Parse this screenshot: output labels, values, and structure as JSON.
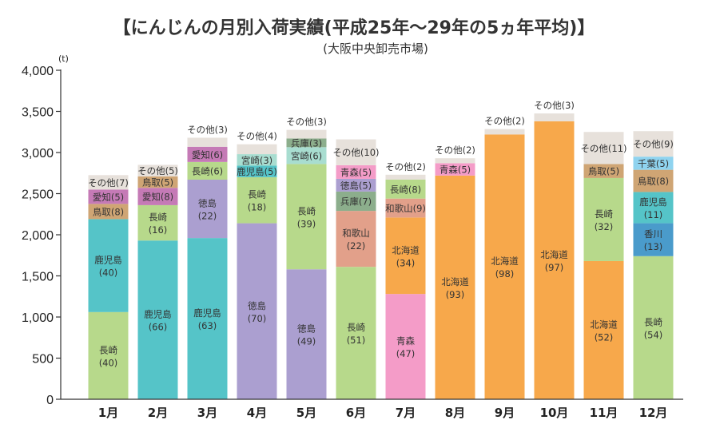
{
  "chart_data": {
    "type": "bar",
    "stacked": true,
    "title": "【にんじんの月別入荷実績(平成25年〜29年の5ヵ年平均)】",
    "subtitle": "(大阪中央卸売市場)",
    "unit": "(t)",
    "ylim": [
      0,
      4000
    ],
    "yticks": [
      "0",
      "500",
      "1,000",
      "1,500",
      "2,000",
      "2,500",
      "3,000",
      "3,500",
      "4,000"
    ],
    "ytick_values": [
      0,
      500,
      1000,
      1500,
      2000,
      2500,
      3000,
      3500,
      4000
    ],
    "grid": false,
    "categories": [
      "1月",
      "2月",
      "3月",
      "4月",
      "5月",
      "6月",
      "7月",
      "8月",
      "9月",
      "10月",
      "11月",
      "12月"
    ],
    "colors": {
      "長崎": "#b7d98b",
      "鹿児島": "#55c4c8",
      "徳島": "#ab9fd0",
      "北海道": "#f7a84b",
      "和歌山": "#e2a08a",
      "青森": "#f49cc8",
      "香川": "#4a9bcb",
      "千葉": "#8fd3ef",
      "鳥取": "#cfa574",
      "愛知": "#c57ab6",
      "宮崎": "#a8ddd0",
      "兵庫": "#8cae8c",
      "その他": "#e7e1db"
    },
    "bars": [
      {
        "month": "1月",
        "segments": [
          {
            "name": "長崎",
            "label": "長崎",
            "pct": "(40)",
            "value": 1060
          },
          {
            "name": "鹿児島",
            "label": "鹿児島",
            "pct": "(40)",
            "value": 1130
          },
          {
            "name": "鳥取",
            "label": "鳥取(8)",
            "value": 185
          },
          {
            "name": "愛知",
            "label": "愛知(5)",
            "value": 175
          },
          {
            "name": "その他",
            "label": "その他(7)",
            "value": 175
          }
        ]
      },
      {
        "month": "2月",
        "segments": [
          {
            "name": "鹿児島",
            "label": "鹿児島",
            "pct": "(66)",
            "value": 1930
          },
          {
            "name": "長崎",
            "label": "長崎",
            "pct": "(16)",
            "value": 430
          },
          {
            "name": "愛知",
            "label": "愛知(8)",
            "value": 210
          },
          {
            "name": "鳥取",
            "label": "鳥取(5)",
            "value": 140
          },
          {
            "name": "その他",
            "label": "その他(5)",
            "value": 140
          }
        ]
      },
      {
        "month": "3月",
        "segments": [
          {
            "name": "鹿児島",
            "label": "鹿児島",
            "pct": "(63)",
            "value": 1960
          },
          {
            "name": "徳島",
            "label": "徳島",
            "pct": "(22)",
            "value": 710
          },
          {
            "name": "長崎",
            "label": "長崎(6)",
            "value": 215
          },
          {
            "name": "愛知",
            "label": "愛知(6)",
            "value": 185
          },
          {
            "name": "その他",
            "label": "その他(3)",
            "value": 110
          }
        ]
      },
      {
        "month": "4月",
        "segments": [
          {
            "name": "徳島",
            "label": "徳島",
            "pct": "(70)",
            "value": 2140
          },
          {
            "name": "長崎",
            "label": "長崎",
            "pct": "(18)",
            "value": 560
          },
          {
            "name": "鹿児島",
            "label": "鹿児島(5)",
            "value": 140
          },
          {
            "name": "宮崎",
            "label": "宮崎(3)",
            "value": 140
          },
          {
            "name": "その他",
            "label": "その他(4)",
            "value": 120
          }
        ]
      },
      {
        "month": "5月",
        "segments": [
          {
            "name": "徳島",
            "label": "徳島",
            "pct": "(49)",
            "value": 1580
          },
          {
            "name": "長崎",
            "label": "長崎",
            "pct": "(39)",
            "value": 1280
          },
          {
            "name": "宮崎",
            "label": "宮崎(6)",
            "value": 205
          },
          {
            "name": "兵庫",
            "label": "兵庫(3)",
            "value": 105
          },
          {
            "name": "その他",
            "label": "その他(3)",
            "value": 105
          }
        ]
      },
      {
        "month": "6月",
        "segments": [
          {
            "name": "長崎",
            "label": "長崎",
            "pct": "(51)",
            "value": 1610
          },
          {
            "name": "和歌山",
            "label": "和歌山",
            "pct": "(22)",
            "value": 680
          },
          {
            "name": "兵庫",
            "label": "兵庫(7)",
            "value": 235
          },
          {
            "name": "徳島",
            "label": "徳島(5)",
            "value": 155
          },
          {
            "name": "青森",
            "label": "青森(5)",
            "value": 165
          },
          {
            "name": "その他",
            "label": "その他(10)",
            "value": 315
          }
        ]
      },
      {
        "month": "7月",
        "segments": [
          {
            "name": "青森",
            "label": "青森",
            "pct": "(47)",
            "value": 1280
          },
          {
            "name": "北海道",
            "label": "北海道",
            "pct": "(34)",
            "value": 930
          },
          {
            "name": "和歌山",
            "label": "和歌山(9)",
            "value": 230
          },
          {
            "name": "長崎",
            "label": "長崎(8)",
            "value": 230
          },
          {
            "name": "その他",
            "label": "その他(2)",
            "value": 60
          }
        ]
      },
      {
        "month": "8月",
        "segments": [
          {
            "name": "北海道",
            "label": "北海道",
            "pct": "(93)",
            "value": 2720
          },
          {
            "name": "青森",
            "label": "青森(5)",
            "value": 150
          },
          {
            "name": "その他",
            "label": "その他(2)",
            "value": 60
          }
        ]
      },
      {
        "month": "9月",
        "segments": [
          {
            "name": "北海道",
            "label": "北海道",
            "pct": "(98)",
            "value": 3220
          },
          {
            "name": "その他",
            "label": "その他(2)",
            "value": 65
          }
        ]
      },
      {
        "month": "10月",
        "segments": [
          {
            "name": "北海道",
            "label": "北海道",
            "pct": "(97)",
            "value": 3380
          },
          {
            "name": "その他",
            "label": "その他(3)",
            "value": 95
          }
        ]
      },
      {
        "month": "11月",
        "segments": [
          {
            "name": "北海道",
            "label": "北海道",
            "pct": "(52)",
            "value": 1680
          },
          {
            "name": "長崎",
            "label": "長崎",
            "pct": "(32)",
            "value": 1010
          },
          {
            "name": "鳥取",
            "label": "鳥取(5)",
            "value": 170
          },
          {
            "name": "その他",
            "label": "その他(11)",
            "value": 390
          }
        ]
      },
      {
        "month": "12月",
        "segments": [
          {
            "name": "長崎",
            "label": "長崎",
            "pct": "(54)",
            "value": 1740
          },
          {
            "name": "香川",
            "label": "香川",
            "pct": "(13)",
            "value": 400
          },
          {
            "name": "鹿児島",
            "label": "鹿児島",
            "pct": "(11)",
            "value": 380
          },
          {
            "name": "鳥取",
            "label": "鳥取(8)",
            "value": 270
          },
          {
            "name": "千葉",
            "label": "千葉(5)",
            "value": 160
          },
          {
            "name": "その他",
            "label": "その他(9)",
            "value": 310
          }
        ]
      }
    ]
  }
}
